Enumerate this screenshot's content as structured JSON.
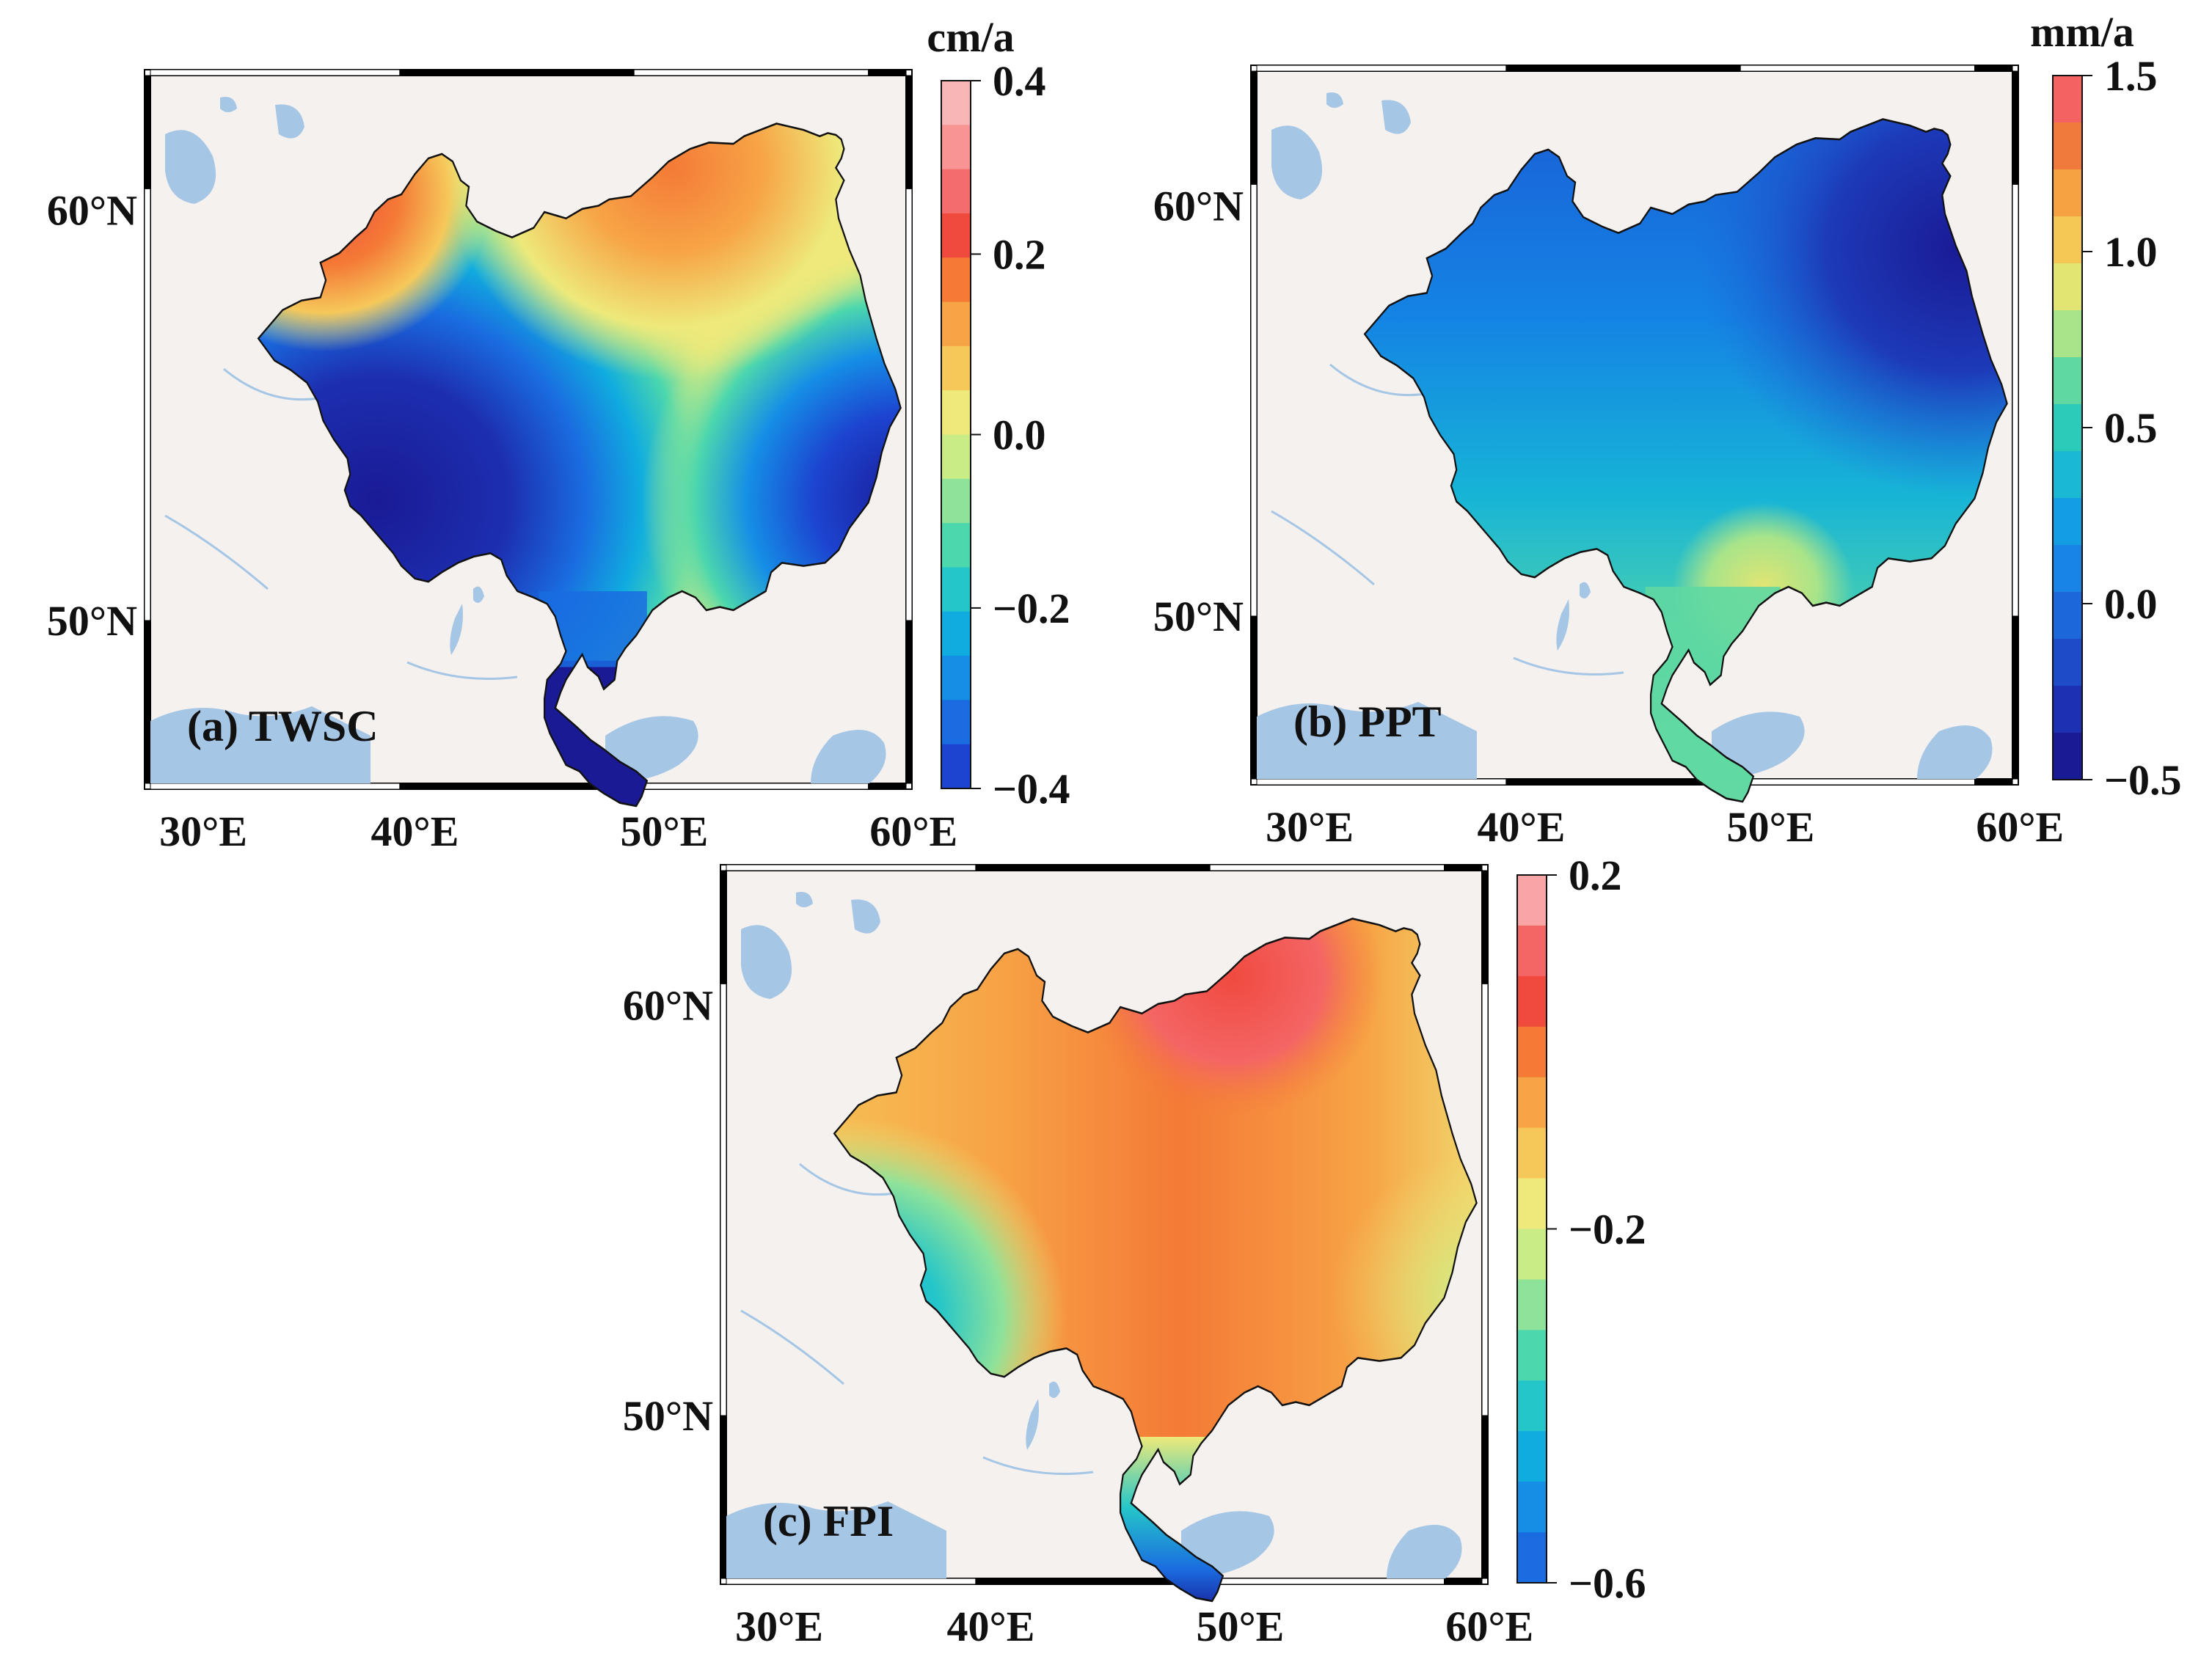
{
  "panels": [
    {
      "id": "a",
      "label": "(a) TWSC",
      "unit": "cm/a",
      "lat_labels": [
        "60°N",
        "50°N"
      ],
      "lon_labels": [
        "30°E",
        "40°E",
        "50°E",
        "60°E"
      ],
      "colorbar": {
        "ticks": [
          "0.4",
          "0.2",
          "0.0",
          "−0.2",
          "−0.4"
        ],
        "colors": [
          "#f9b6b6",
          "#f99494",
          "#f46d6d",
          "#f04a3f",
          "#f47a36",
          "#f7a446",
          "#f6c85a",
          "#eee97a",
          "#c9ec86",
          "#8ee29a",
          "#4cd7ad",
          "#25c6c9",
          "#10acdf",
          "#158ee6",
          "#1a6ce0",
          "#1c44d0"
        ]
      }
    },
    {
      "id": "b",
      "label": "(b) PPT",
      "unit": "mm/a",
      "lat_labels": [
        "60°N",
        "50°N"
      ],
      "lon_labels": [
        "30°E",
        "40°E",
        "50°E",
        "60°E"
      ],
      "colorbar": {
        "ticks": [
          "1.5",
          "1.0",
          "0.5",
          "0.0",
          "−0.5"
        ],
        "colors": [
          "#f46262",
          "#f07a3c",
          "#f5a243",
          "#f5c755",
          "#e2e572",
          "#a8e48a",
          "#5fd8a2",
          "#2ccbb9",
          "#1ab8d2",
          "#139ee3",
          "#1884e6",
          "#1c68da",
          "#1e4cc9",
          "#1d30b3",
          "#1a1a95"
        ]
      }
    },
    {
      "id": "c",
      "label": "(c) FPI",
      "unit": "",
      "lat_labels": [
        "60°N",
        "50°N"
      ],
      "lon_labels": [
        "30°E",
        "40°E",
        "50°E",
        "60°E"
      ],
      "colorbar": {
        "ticks": [
          "0.2",
          "−0.2",
          "−0.6"
        ],
        "colors": [
          "#f9a5a5",
          "#f46565",
          "#f04a3f",
          "#f47a36",
          "#f7a446",
          "#f6c85a",
          "#eee97a",
          "#c9ec86",
          "#8ee29a",
          "#4cd7ad",
          "#25c6c9",
          "#10acdf",
          "#158ee6",
          "#1a6ce0"
        ]
      }
    }
  ],
  "colors": {
    "land": "#f4f1ee",
    "water": "#a6c6e6",
    "frame": "#000000",
    "outline": "#111111"
  }
}
